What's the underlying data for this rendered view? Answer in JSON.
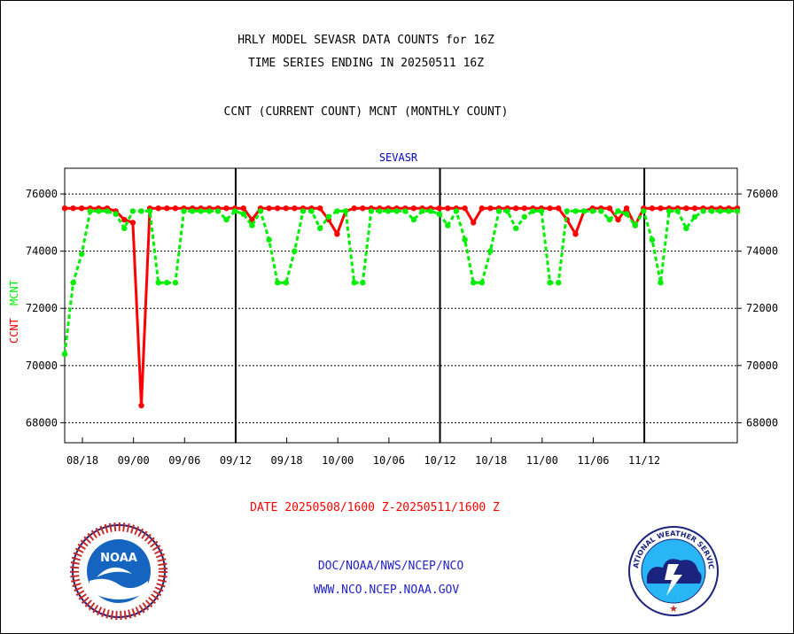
{
  "header": {
    "line1": "HRLY MODEL SEVASR DATA COUNTS for 16Z",
    "line2": "TIME SERIES ENDING IN 20250511 16Z",
    "line3": "CCNT (CURRENT COUNT) MCNT (MONTHLY COUNT)"
  },
  "footer": {
    "date_range": "DATE 20250508/1600 Z-20250511/1600 Z",
    "org_path": "DOC/NOAA/NWS/NCEP/NCO",
    "website": "WWW.NCO.NCEP.NOAA.GOV",
    "noaa_logo_text": "NOAA",
    "nws_logo_text": "NATIONAL WEATHER SERVICE"
  },
  "colors": {
    "ccnt": "#ff0000",
    "mcnt": "#00ee00",
    "title": "#000000",
    "panel_title": "#0000cc",
    "footer_blue": "#2222cc",
    "date_red": "#ff0000"
  },
  "chart_data": {
    "type": "line",
    "title": "SEVASR",
    "ylabel_left": "CCNT",
    "ylabel_left2": "MCNT",
    "ylim": [
      67300,
      76900
    ],
    "yticks": [
      68000,
      70000,
      72000,
      74000,
      76000
    ],
    "yticklabels": [
      "68000",
      "70000",
      "72000",
      "74000",
      "76000"
    ],
    "grid": true,
    "xticklabels": [
      "08/18",
      "09/00",
      "09/06",
      "09/12",
      "09/18",
      "10/00",
      "10/06",
      "10/12",
      "10/18",
      "11/00",
      "11/06",
      "11/12"
    ],
    "day_boundaries": [
      "09/12",
      "10/12",
      "11/12"
    ],
    "x_hours_from_0818": [
      0,
      6,
      12,
      18,
      24,
      30,
      36,
      42,
      48,
      54,
      60,
      66
    ],
    "series": [
      {
        "name": "CCNT",
        "color": "#ff0000",
        "values": [
          75500,
          75500,
          75500,
          75500,
          75500,
          75500,
          75400,
          75100,
          75000,
          68600,
          75500,
          75500,
          75500,
          75500,
          75500,
          75500,
          75500,
          75500,
          75500,
          75500,
          75500,
          75500,
          75100,
          75500,
          75500,
          75500,
          75500,
          75500,
          75500,
          75500,
          75500,
          75100,
          74600,
          75400,
          75500,
          75500,
          75500,
          75500,
          75500,
          75500,
          75500,
          75500,
          75500,
          75500,
          75500,
          75500,
          75500,
          75500,
          75000,
          75500,
          75500,
          75500,
          75500,
          75500,
          75500,
          75500,
          75500,
          75500,
          75500,
          75100,
          74600,
          75400,
          75500,
          75500,
          75500,
          75100,
          75500,
          74900,
          75500,
          75500,
          75500,
          75500,
          75500,
          75500,
          75500,
          75500,
          75500,
          75500,
          75500,
          75500
        ]
      },
      {
        "name": "MCNT",
        "color": "#00ee00",
        "values": [
          70400,
          72900,
          73900,
          75400,
          75400,
          75400,
          75300,
          74800,
          75400,
          75400,
          75400,
          72900,
          72900,
          72900,
          75400,
          75400,
          75400,
          75400,
          75400,
          75100,
          75400,
          75300,
          74900,
          75400,
          74400,
          72900,
          72900,
          74000,
          75400,
          75400,
          74800,
          75200,
          75400,
          75400,
          72900,
          72900,
          75400,
          75400,
          75400,
          75400,
          75400,
          75100,
          75400,
          75400,
          75300,
          74900,
          75400,
          74400,
          72900,
          72900,
          74000,
          75400,
          75400,
          74800,
          75200,
          75400,
          75400,
          72900,
          72900,
          75400,
          75400,
          75400,
          75400,
          75400,
          75100,
          75400,
          75300,
          74900,
          75400,
          74400,
          72900,
          75400,
          75400,
          74800,
          75200,
          75400,
          75400,
          75400,
          75400,
          75400
        ]
      }
    ]
  }
}
